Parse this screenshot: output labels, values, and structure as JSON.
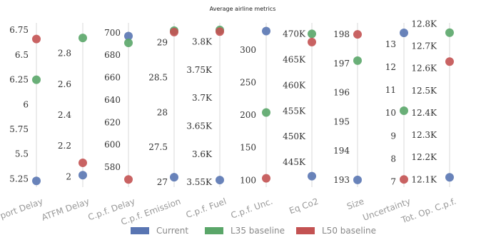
{
  "chart_data": {
    "type": "scatter",
    "title": "Average airline metrics",
    "legend_position": "bottom",
    "series_colors": {
      "Current": "#5975b2",
      "L35 baseline": "#5aa669",
      "L50 baseline": "#c35252"
    },
    "series": [
      {
        "name": "Current"
      },
      {
        "name": "L35 baseline"
      },
      {
        "name": "L50 baseline"
      }
    ],
    "panels": [
      {
        "label": "Airport Delay",
        "ticks": [
          "5.25",
          "5.5",
          "5.75",
          "6",
          "6.25",
          "6.5",
          "6.75"
        ],
        "ylim": [
          5.21,
          6.78
        ],
        "values": {
          "Current": 5.23,
          "L35 baseline": 6.25,
          "L50 baseline": 6.66
        }
      },
      {
        "label": "ATFM Delay",
        "ticks": [
          "2",
          "2.2",
          "2.4",
          "2.6",
          "2.8"
        ],
        "ylim": [
          1.96,
          2.97
        ],
        "values": {
          "Current": 2.01,
          "L35 baseline": 2.9,
          "L50 baseline": 2.09
        }
      },
      {
        "label": "C.p.f. Delay",
        "ticks": [
          "580",
          "600",
          "620",
          "640",
          "660",
          "680",
          "700"
        ],
        "ylim": [
          566,
          705
        ],
        "values": {
          "Current": 697,
          "L35 baseline": 691,
          "L50 baseline": 569
        }
      },
      {
        "label": "C.p.f. Emission",
        "ticks": [
          "27",
          "27.5",
          "28",
          "28.5",
          "29"
        ],
        "ylim": [
          26.99,
          29.22
        ],
        "values": {
          "Current": 27.07,
          "L35 baseline": 29.17,
          "L50 baseline": 29.15
        }
      },
      {
        "label": "C.p.f. Fuel",
        "ticks": [
          "3.55K",
          "3.6K",
          "3.65K",
          "3.7K",
          "3.75K",
          "3.8K"
        ],
        "ylim": [
          3549,
          3826
        ],
        "values": {
          "Current": 3554,
          "L35 baseline": 3821,
          "L50 baseline": 3818
        }
      },
      {
        "label": "C.p.f. Unc.",
        "ticks": [
          "100",
          "150",
          "200",
          "250",
          "300"
        ],
        "ylim": [
          96,
          335
        ],
        "values": {
          "Current": 329,
          "L35 baseline": 204,
          "L50 baseline": 103
        }
      },
      {
        "label": "Eq Co2",
        "ticks": [
          "445K",
          "450K",
          "455K",
          "460K",
          "465K",
          "470K"
        ],
        "ylim": [
          441000,
          471300
        ],
        "values": {
          "Current": 442300,
          "L35 baseline": 470000,
          "L50 baseline": 468400
        }
      },
      {
        "label": "Size",
        "ticks": [
          "193",
          "194",
          "195",
          "196",
          "197",
          "198"
        ],
        "ylim": [
          192.9,
          198.25
        ],
        "values": {
          "Current": 193.0,
          "L35 baseline": 197.1,
          "L50 baseline": 198.0
        }
      },
      {
        "label": "Uncertainty",
        "ticks": [
          "7",
          "8",
          "9",
          "10",
          "11",
          "12",
          "13"
        ],
        "ylim": [
          6.95,
          13.75
        ],
        "values": {
          "Current": 13.5,
          "L35 baseline": 10.1,
          "L50 baseline": 7.1
        }
      },
      {
        "label": "Tot. Op. C.p.f.",
        "ticks": [
          "12.1K",
          "12.2K",
          "12.3K",
          "12.4K",
          "12.5K",
          "12.6K",
          "12.7K",
          "12.8K"
        ],
        "ylim": [
          12085,
          12785
        ],
        "values": {
          "Current": 12110,
          "L35 baseline": 12760,
          "L50 baseline": 12630
        }
      }
    ]
  }
}
